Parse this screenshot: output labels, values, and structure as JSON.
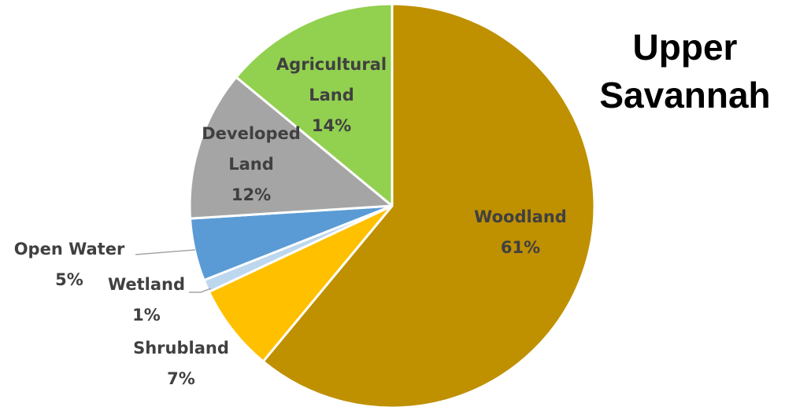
{
  "chart_data": {
    "type": "pie",
    "title_lines": [
      "Upper",
      "Savannah"
    ],
    "categories": [
      "Woodland",
      "Shrubland",
      "Wetland",
      "Open Water",
      "Developed Land",
      "Agricultural Land"
    ],
    "values": [
      61,
      7,
      1,
      5,
      12,
      14
    ],
    "label_lines": [
      [
        "Woodland",
        "61%"
      ],
      [
        "Shrubland",
        "7%"
      ],
      [
        "Wetland",
        "1%"
      ],
      [
        "Open Water",
        "5%"
      ],
      [
        "Developed",
        "Land",
        "12%"
      ],
      [
        "Agricultural",
        "Land",
        "14%"
      ]
    ],
    "colors": [
      "#BF9000",
      "#FFC000",
      "#BDD7EE",
      "#5B9BD5",
      "#A5A5A5",
      "#92D050"
    ],
    "start_angle_deg": 0,
    "direction": "clockwise",
    "legend": "none"
  }
}
